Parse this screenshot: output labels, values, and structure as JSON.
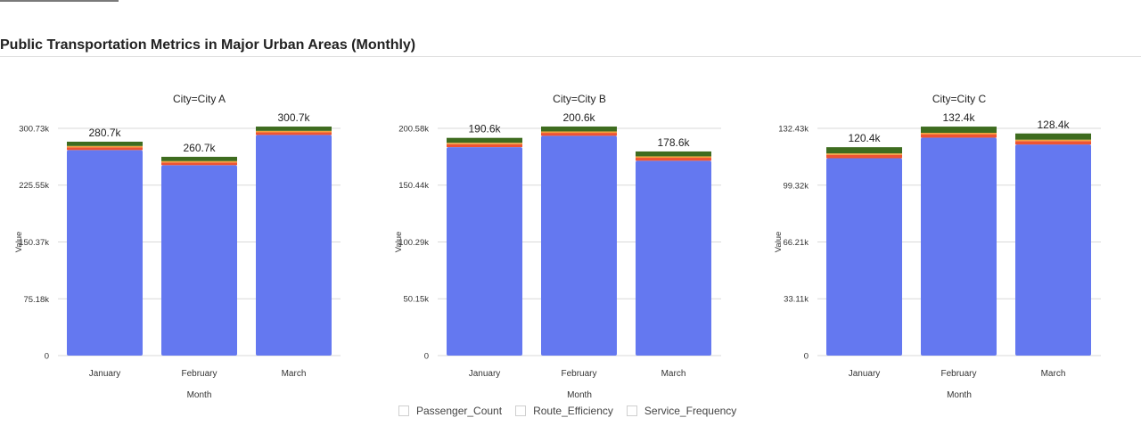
{
  "header": {
    "title": "Public Transportation Metrics in Major Urban Areas (Monthly)"
  },
  "colors": {
    "passenger": "#6478F0",
    "efficiency": "#EE5433",
    "frequency": "#3E6C1F",
    "accent_orange": "#F2A23C",
    "grid": "#d9d9d9",
    "axis_text": "#333333"
  },
  "legend": {
    "items": [
      {
        "label": "Passenger_Count"
      },
      {
        "label": "Route_Efficiency"
      },
      {
        "label": "Service_Frequency"
      }
    ]
  },
  "chart_data": [
    {
      "type": "bar",
      "stacked": true,
      "title": "City=City A",
      "xlabel": "Month",
      "ylabel": "Value",
      "categories": [
        "January",
        "February",
        "March"
      ],
      "ylim": [
        0,
        300730
      ],
      "yticks": [
        0,
        75180,
        150370,
        225550,
        300730
      ],
      "ytick_labels": [
        "0",
        "75.18k",
        "150.37k",
        "225.55k",
        "300.73k"
      ],
      "totals_labels": [
        "280.7k",
        "260.7k",
        "300.7k"
      ],
      "series": [
        {
          "name": "Passenger_Count",
          "values": [
            272000,
            252000,
            292000
          ]
        },
        {
          "name": "Route_Efficiency",
          "values": [
            3500,
            3500,
            3500
          ]
        },
        {
          "name": "Service_Frequency",
          "values": [
            5200,
            5200,
            5200
          ]
        }
      ],
      "grid": true
    },
    {
      "type": "bar",
      "stacked": true,
      "title": "City=City B",
      "xlabel": "Month",
      "ylabel": "Value",
      "categories": [
        "January",
        "February",
        "March"
      ],
      "ylim": [
        0,
        200580
      ],
      "yticks": [
        0,
        50150,
        100290,
        150440,
        200580
      ],
      "ytick_labels": [
        "0",
        "50.15k",
        "100.29k",
        "150.44k",
        "200.58k"
      ],
      "totals_labels": [
        "190.6k",
        "200.6k",
        "178.6k"
      ],
      "series": [
        {
          "name": "Passenger_Count",
          "values": [
            184000,
            194000,
            172000
          ]
        },
        {
          "name": "Route_Efficiency",
          "values": [
            2600,
            2600,
            2600
          ]
        },
        {
          "name": "Service_Frequency",
          "values": [
            4000,
            4000,
            4000
          ]
        }
      ],
      "grid": true
    },
    {
      "type": "bar",
      "stacked": true,
      "title": "City=City C",
      "xlabel": "Month",
      "ylabel": "Value",
      "categories": [
        "January",
        "February",
        "March"
      ],
      "ylim": [
        0,
        132430
      ],
      "yticks": [
        0,
        33110,
        66210,
        99320,
        132430
      ],
      "ytick_labels": [
        "0",
        "33.11k",
        "66.21k",
        "99.32k",
        "132.43k"
      ],
      "totals_labels": [
        "120.4k",
        "132.4k",
        "128.4k"
      ],
      "series": [
        {
          "name": "Passenger_Count",
          "values": [
            115000,
            127000,
            123000
          ]
        },
        {
          "name": "Route_Efficiency",
          "values": [
            2000,
            2000,
            2000
          ]
        },
        {
          "name": "Service_Frequency",
          "values": [
            3400,
            3400,
            3400
          ]
        }
      ],
      "grid": true
    }
  ]
}
